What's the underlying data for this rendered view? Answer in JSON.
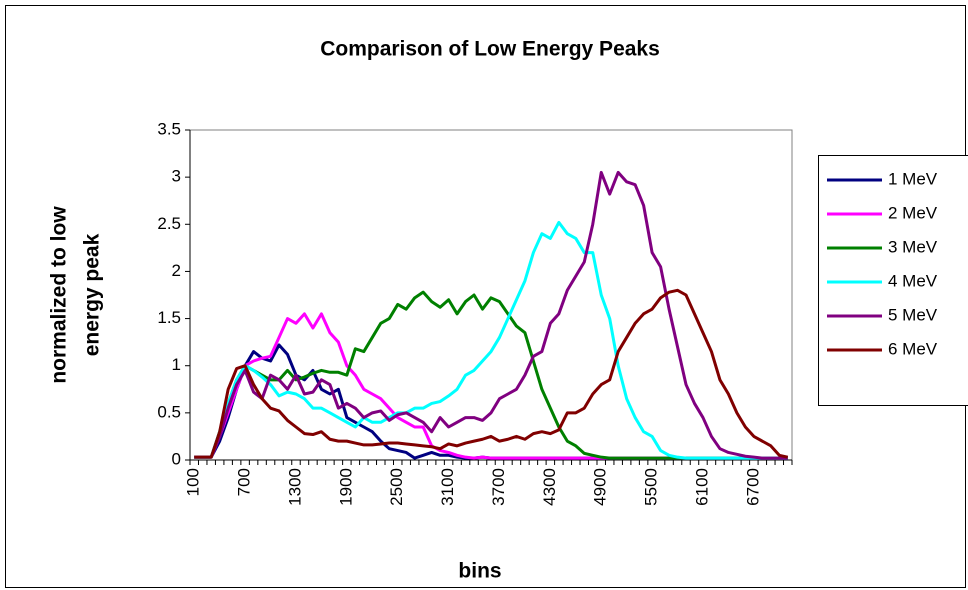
{
  "chart_data": {
    "type": "line",
    "title": "Comparison of Low Energy Peaks",
    "x_label": "bins",
    "y_label": [
      "normalized to low",
      "energy peak"
    ],
    "categories": [
      100,
      null,
      null,
      null,
      null,
      null,
      700,
      null,
      null,
      null,
      null,
      null,
      1300,
      null,
      null,
      null,
      null,
      null,
      1900,
      null,
      null,
      null,
      null,
      null,
      2500,
      null,
      null,
      null,
      null,
      null,
      3100,
      null,
      null,
      null,
      null,
      null,
      3700,
      null,
      null,
      null,
      null,
      null,
      4300,
      null,
      null,
      null,
      null,
      null,
      4900,
      null,
      null,
      null,
      null,
      null,
      5500,
      null,
      null,
      null,
      null,
      null,
      6100,
      null,
      null,
      null,
      null,
      null,
      6700,
      null,
      null,
      null,
      null
    ],
    "ylim": [
      0,
      3.5
    ],
    "yticks": [
      0,
      0.5,
      1,
      1.5,
      2,
      2.5,
      3,
      3.5
    ],
    "grid": false,
    "legend": "right",
    "series": [
      {
        "name": "1 MeV",
        "color": "#000080",
        "values": [
          0.03,
          0.03,
          0.03,
          0.2,
          0.45,
          0.75,
          1.0,
          1.15,
          1.08,
          1.05,
          1.22,
          1.12,
          0.9,
          0.85,
          0.95,
          0.75,
          0.7,
          0.75,
          0.45,
          0.4,
          0.35,
          0.3,
          0.2,
          0.12,
          0.1,
          0.08,
          0.02,
          0.05,
          0.08,
          0.05,
          0.05,
          0.03,
          0.02,
          0.02,
          0.03,
          0.02,
          0.02,
          0.02,
          0.02,
          0.02,
          0.02,
          0.02,
          0.02,
          0.02,
          0.02,
          0.02,
          0.02,
          0.02,
          0.02,
          0.02,
          0.02,
          0.02,
          0.02,
          0.02,
          0.02,
          0.02,
          0.02,
          0.02,
          0.02,
          0.02,
          0.02,
          0.02,
          0.02,
          0.02,
          0.02,
          0.02,
          0.02,
          0.02,
          0.02,
          0.02,
          0.02
        ]
      },
      {
        "name": "2 MeV",
        "color": "#ff00ff",
        "values": [
          0.03,
          0.03,
          0.03,
          0.25,
          0.5,
          0.75,
          1.0,
          1.05,
          1.08,
          1.1,
          1.3,
          1.5,
          1.45,
          1.55,
          1.4,
          1.55,
          1.35,
          1.25,
          1.0,
          0.9,
          0.75,
          0.7,
          0.65,
          0.55,
          0.45,
          0.4,
          0.35,
          0.35,
          0.15,
          0.1,
          0.08,
          0.05,
          0.03,
          0.02,
          0.03,
          0.02,
          0.02,
          0.02,
          0.02,
          0.02,
          0.02,
          0.02,
          0.02,
          0.02,
          0.02,
          0.02,
          0.02,
          0.02,
          0.02,
          0.02,
          0.02,
          0.02,
          0.02,
          0.02,
          0.02,
          0.02,
          0.02,
          0.02,
          0.02,
          0.02,
          0.02,
          0.02,
          0.02,
          0.02,
          0.02,
          0.02,
          0.02,
          0.02,
          0.02,
          0.02,
          0.02
        ]
      },
      {
        "name": "3 MeV",
        "color": "#008000",
        "values": [
          0.03,
          0.03,
          0.03,
          0.3,
          0.6,
          0.85,
          1.0,
          0.95,
          0.9,
          0.85,
          0.85,
          0.95,
          0.85,
          0.88,
          0.92,
          0.95,
          0.93,
          0.93,
          0.9,
          1.18,
          1.15,
          1.3,
          1.45,
          1.5,
          1.65,
          1.6,
          1.72,
          1.78,
          1.68,
          1.62,
          1.7,
          1.55,
          1.68,
          1.75,
          1.6,
          1.72,
          1.68,
          1.55,
          1.42,
          1.35,
          1.05,
          0.75,
          0.55,
          0.35,
          0.2,
          0.15,
          0.07,
          0.05,
          0.03,
          0.02,
          0.02,
          0.02,
          0.02,
          0.02,
          0.02,
          0.02,
          0.02,
          0.02,
          0.02,
          0.02,
          0.02,
          0.02,
          0.02,
          0.02,
          0.02,
          0.02,
          0.02,
          0.02,
          0.02,
          0.02,
          0.02
        ]
      },
      {
        "name": "4 MeV",
        "color": "#00ffff",
        "values": [
          0.03,
          0.03,
          0.03,
          0.3,
          0.6,
          0.85,
          1.0,
          0.95,
          0.88,
          0.8,
          0.68,
          0.72,
          0.7,
          0.65,
          0.55,
          0.55,
          0.5,
          0.45,
          0.4,
          0.35,
          0.45,
          0.4,
          0.4,
          0.45,
          0.5,
          0.5,
          0.55,
          0.55,
          0.6,
          0.62,
          0.68,
          0.75,
          0.9,
          0.95,
          1.05,
          1.15,
          1.3,
          1.5,
          1.7,
          1.9,
          2.2,
          2.4,
          2.35,
          2.52,
          2.4,
          2.35,
          2.2,
          2.2,
          1.75,
          1.5,
          1.0,
          0.65,
          0.45,
          0.3,
          0.25,
          0.1,
          0.05,
          0.03,
          0.02,
          0.02,
          0.02,
          0.02,
          0.02,
          0.02,
          0.02,
          0.02,
          0.02,
          0.02,
          0.02,
          0.02,
          0.02
        ]
      },
      {
        "name": "5 MeV",
        "color": "#800080",
        "values": [
          0.03,
          0.03,
          0.03,
          0.25,
          0.55,
          0.8,
          0.95,
          0.72,
          0.65,
          0.9,
          0.85,
          0.75,
          0.9,
          0.7,
          0.72,
          0.85,
          0.8,
          0.55,
          0.6,
          0.55,
          0.45,
          0.5,
          0.52,
          0.42,
          0.48,
          0.5,
          0.45,
          0.4,
          0.3,
          0.45,
          0.35,
          0.4,
          0.45,
          0.45,
          0.42,
          0.5,
          0.65,
          0.7,
          0.75,
          0.9,
          1.1,
          1.15,
          1.45,
          1.55,
          1.8,
          1.95,
          2.1,
          2.5,
          3.05,
          2.82,
          3.05,
          2.95,
          2.92,
          2.7,
          2.2,
          2.05,
          1.6,
          1.2,
          0.8,
          0.6,
          0.45,
          0.25,
          0.12,
          0.08,
          0.06,
          0.04,
          0.03,
          0.02,
          0.02,
          0.02,
          0.02
        ]
      },
      {
        "name": "6 MeV",
        "color": "#800000",
        "values": [
          0.03,
          0.03,
          0.03,
          0.3,
          0.75,
          0.97,
          1.0,
          0.8,
          0.65,
          0.55,
          0.52,
          0.42,
          0.35,
          0.28,
          0.27,
          0.3,
          0.22,
          0.2,
          0.2,
          0.18,
          0.16,
          0.16,
          0.17,
          0.18,
          0.18,
          0.17,
          0.16,
          0.15,
          0.14,
          0.12,
          0.17,
          0.15,
          0.18,
          0.2,
          0.22,
          0.25,
          0.2,
          0.22,
          0.25,
          0.22,
          0.28,
          0.3,
          0.28,
          0.32,
          0.5,
          0.5,
          0.55,
          0.7,
          0.8,
          0.85,
          1.15,
          1.3,
          1.45,
          1.55,
          1.6,
          1.72,
          1.78,
          1.8,
          1.75,
          1.55,
          1.35,
          1.15,
          0.85,
          0.7,
          0.5,
          0.35,
          0.25,
          0.2,
          0.15,
          0.05,
          0.03
        ]
      }
    ]
  }
}
